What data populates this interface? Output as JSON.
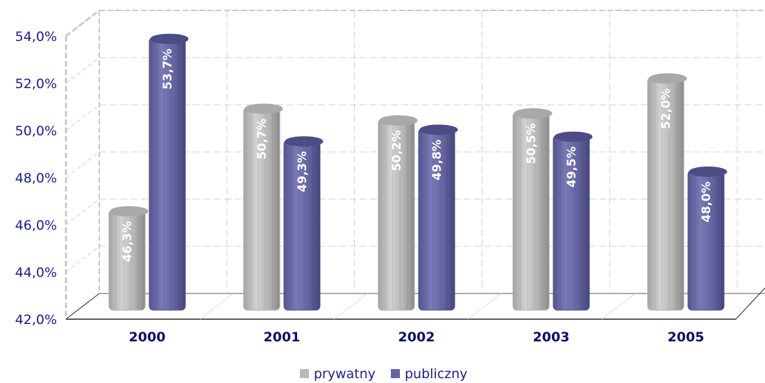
{
  "chart_data": {
    "type": "bar",
    "categories": [
      "2000",
      "2001",
      "2002",
      "2003",
      "2005"
    ],
    "series": [
      {
        "name": "prywatny",
        "values": [
          46.3,
          50.7,
          50.2,
          50.5,
          52.0
        ],
        "labels": [
          "46,3%",
          "50,7%",
          "50,2%",
          "50,5%",
          "52,0%"
        ],
        "color": "#b9b9b9"
      },
      {
        "name": "publiczny",
        "values": [
          53.7,
          49.3,
          49.8,
          49.5,
          48.0
        ],
        "labels": [
          "53,7%",
          "49,3%",
          "49,8%",
          "49,5%",
          "48,0%"
        ],
        "color": "#6464a4"
      }
    ],
    "yticks": [
      "42,0%",
      "44,0%",
      "46,0%",
      "48,0%",
      "50,0%",
      "52,0%",
      "54,0%"
    ],
    "ylim": [
      42,
      54
    ],
    "grid": true,
    "legend_position": "bottom"
  }
}
